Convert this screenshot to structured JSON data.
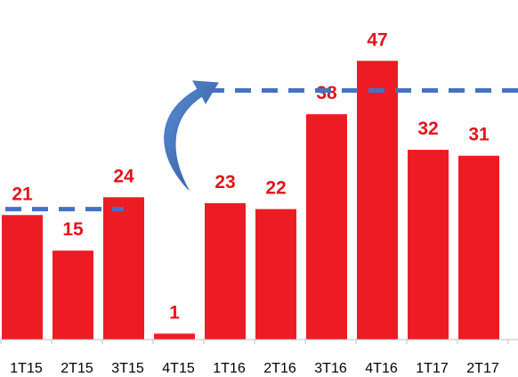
{
  "chart_data": {
    "type": "bar",
    "categories": [
      "1T15",
      "2T15",
      "3T15",
      "4T15",
      "1T16",
      "2T16",
      "3T16",
      "4T16",
      "1T17",
      "2T17"
    ],
    "values": [
      21,
      15,
      24,
      1,
      23,
      22,
      38,
      47,
      32,
      31
    ],
    "title": "",
    "xlabel": "",
    "ylabel": "",
    "ylim": [
      0,
      52
    ],
    "grid": false,
    "legend": "none",
    "bar_color": "#ed1c24",
    "label_color": "#e3141c",
    "annotations": [
      {
        "type": "dashed-line",
        "y": 22,
        "from_category": "1T15",
        "to_category": "3T15",
        "color": "#4472c4"
      },
      {
        "type": "dashed-line",
        "y": 42,
        "from_category": "1T16",
        "to_category": "2T17",
        "color": "#4472c4"
      },
      {
        "type": "curved-arrow",
        "from_category": "3T15",
        "to_category": "1T16",
        "color": "#4472c4"
      }
    ]
  }
}
